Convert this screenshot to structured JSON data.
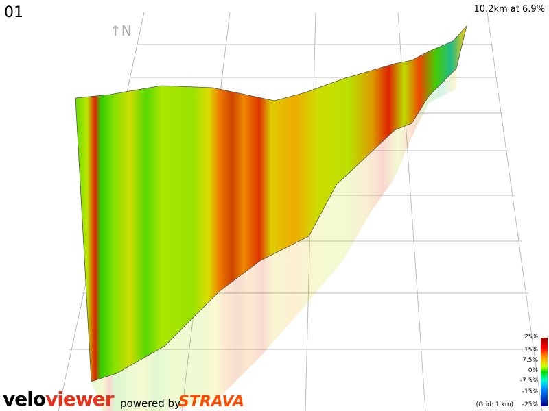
{
  "title": "01",
  "summary": "10.2km at 6.9%",
  "north": "↑N",
  "legend": {
    "labels": [
      "25%",
      "15%",
      "7.5%",
      "0%",
      "-7.5%",
      "-15%",
      "-25%"
    ],
    "grid_note": "(Grid: 1 km)"
  },
  "branding": {
    "velo": "velo",
    "viewer": "viewer",
    "powered_by": "powered by",
    "strava": "STRAVA"
  }
}
